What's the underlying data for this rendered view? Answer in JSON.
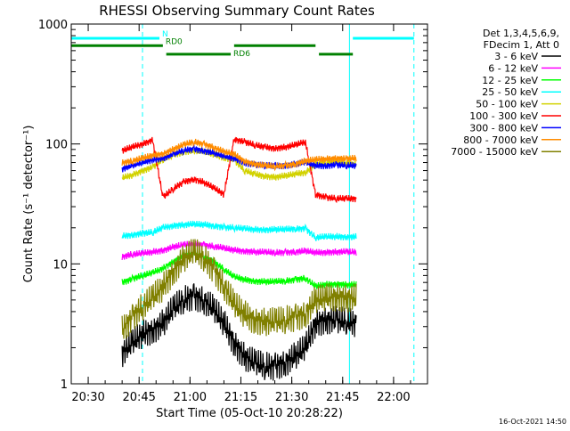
{
  "chart_data": {
    "type": "line",
    "title": "RHESSI Observing Summary Count Rates",
    "xlabel": "Start Time (05-Oct-10 20:28:22)",
    "ylabel": "Count Rate (s⁻¹ detector⁻¹)",
    "y_scale": "log",
    "ylim": [
      1,
      1000
    ],
    "xlim": [
      "20:25",
      "22:10"
    ],
    "x_ticks": [
      "20:30",
      "20:45",
      "21:00",
      "21:15",
      "21:30",
      "21:45",
      "22:00"
    ],
    "y_ticks": [
      "1",
      "10",
      "100",
      "1000"
    ],
    "legend_header": [
      "Det 1,3,4,5,6,9,",
      "FDecim 1, Att 0"
    ],
    "legend_position": "top-right",
    "timestamp": "16-Oct-2021 14:50",
    "flags": [
      {
        "label": "N",
        "color": "#00ffff",
        "segments": [
          [
            "20:25",
            "20:51"
          ],
          [
            "21:48",
            "22:06"
          ]
        ],
        "level": 760
      },
      {
        "label": "RD0",
        "color": "#008000",
        "segments": [
          [
            "20:25",
            "20:52"
          ],
          [
            "21:13",
            "21:37"
          ]
        ],
        "level": 660
      },
      {
        "label": "RD6",
        "color": "#008000",
        "segments": [
          [
            "20:53",
            "21:12"
          ],
          [
            "21:38",
            "21:48"
          ]
        ],
        "level": 560
      }
    ],
    "markers": [
      {
        "color": "#00ffff",
        "style": "solid",
        "x": "20:25"
      },
      {
        "color": "#00ffff",
        "style": "dashed",
        "x": "20:46"
      },
      {
        "color": "#00ffff",
        "style": "solid",
        "x": "21:47"
      },
      {
        "color": "#00ffff",
        "style": "dashed",
        "x": "22:06"
      }
    ],
    "series": [
      {
        "name": "3 - 6 keV",
        "color": "#000000",
        "x": [
          "20:40",
          "20:43",
          "20:46",
          "20:49",
          "20:52",
          "20:55",
          "20:58",
          "21:01",
          "21:04",
          "21:07",
          "21:10",
          "21:13",
          "21:16",
          "21:19",
          "21:22",
          "21:25",
          "21:28",
          "21:31",
          "21:34",
          "21:37",
          "21:40",
          "21:43",
          "21:46",
          "21:49"
        ],
        "values": [
          1.8,
          2.2,
          2.6,
          2.8,
          3.2,
          4.2,
          5.0,
          5.4,
          5.0,
          4.2,
          3.2,
          2.2,
          1.7,
          1.5,
          1.4,
          1.4,
          1.5,
          1.7,
          2.0,
          3.2,
          3.4,
          3.4,
          3.3,
          3.2
        ]
      },
      {
        "name": "6 - 12 keV",
        "color": "#ff00ff",
        "x": [
          "20:40",
          "20:43",
          "20:46",
          "20:49",
          "20:52",
          "20:55",
          "20:58",
          "21:01",
          "21:04",
          "21:07",
          "21:10",
          "21:13",
          "21:16",
          "21:19",
          "21:22",
          "21:25",
          "21:28",
          "21:31",
          "21:34",
          "21:37",
          "21:40",
          "21:43",
          "21:46",
          "21:49"
        ],
        "values": [
          11.5,
          12,
          12.2,
          12.6,
          13,
          13.8,
          14.4,
          14.6,
          14.4,
          14,
          13.5,
          13,
          12.8,
          12.6,
          12.5,
          12.4,
          12.5,
          12.6,
          12.8,
          12.4,
          12.5,
          12.6,
          12.6,
          12.5
        ]
      },
      {
        "name": "12 - 25 keV",
        "color": "#00ff00",
        "x": [
          "20:40",
          "20:43",
          "20:46",
          "20:49",
          "20:52",
          "20:55",
          "20:58",
          "21:01",
          "21:04",
          "21:07",
          "21:10",
          "21:13",
          "21:16",
          "21:19",
          "21:22",
          "21:25",
          "21:28",
          "21:31",
          "21:34",
          "21:37",
          "21:40",
          "21:43",
          "21:46",
          "21:49"
        ],
        "values": [
          7,
          7.5,
          8,
          8.4,
          9.2,
          10.4,
          11.8,
          12.2,
          11.6,
          10.5,
          9,
          7.8,
          7.4,
          7.2,
          7.1,
          7.1,
          7.2,
          7.4,
          7.6,
          6.5,
          6.7,
          6.8,
          6.7,
          6.7
        ]
      },
      {
        "name": "25 - 50 keV",
        "color": "#00ffff",
        "x": [
          "20:40",
          "20:43",
          "20:46",
          "20:49",
          "20:52",
          "20:55",
          "20:58",
          "21:01",
          "21:04",
          "21:07",
          "21:10",
          "21:13",
          "21:16",
          "21:19",
          "21:22",
          "21:25",
          "21:28",
          "21:31",
          "21:34",
          "21:37",
          "21:40",
          "21:43",
          "21:46",
          "21:49"
        ],
        "values": [
          17,
          17.5,
          18,
          18.3,
          20,
          20.8,
          21.2,
          21.4,
          21.2,
          20.8,
          20.2,
          20,
          19.6,
          19.4,
          19.3,
          19.3,
          19.4,
          19.6,
          19.8,
          16.6,
          16.8,
          16.9,
          16.8,
          16.8
        ]
      },
      {
        "name": "50 - 100 keV",
        "color": "#d2d200",
        "x": [
          "20:40",
          "20:43",
          "20:46",
          "20:49",
          "20:52",
          "20:55",
          "20:58",
          "21:01",
          "21:04",
          "21:07",
          "21:10",
          "21:13",
          "21:16",
          "21:19",
          "21:22",
          "21:25",
          "21:28",
          "21:31",
          "21:34",
          "21:37",
          "21:40",
          "21:43",
          "21:46",
          "21:49"
        ],
        "values": [
          52,
          55,
          60,
          64,
          74,
          80,
          86,
          88,
          86,
          82,
          77,
          74,
          60,
          56,
          54,
          53,
          54,
          56,
          58,
          68,
          69,
          70,
          69,
          68
        ]
      },
      {
        "name": "100 - 300 keV",
        "color": "#ff0000",
        "x": [
          "20:40",
          "20:43",
          "20:46",
          "20:49",
          "20:52",
          "20:55",
          "20:58",
          "21:01",
          "21:04",
          "21:07",
          "21:10",
          "21:13",
          "21:16",
          "21:19",
          "21:22",
          "21:25",
          "21:28",
          "21:31",
          "21:34",
          "21:37",
          "21:40",
          "21:43",
          "21:46",
          "21:49"
        ],
        "values": [
          88,
          94,
          100,
          108,
          36,
          42,
          48,
          51,
          48,
          43,
          38,
          110,
          104,
          98,
          94,
          92,
          94,
          98,
          104,
          38,
          36,
          35,
          35,
          35
        ]
      },
      {
        "name": "300 - 800 keV",
        "color": "#0000ff",
        "x": [
          "20:40",
          "20:43",
          "20:46",
          "20:49",
          "20:52",
          "20:55",
          "20:58",
          "21:01",
          "21:04",
          "21:07",
          "21:10",
          "21:13",
          "21:16",
          "21:19",
          "21:22",
          "21:25",
          "21:28",
          "21:31",
          "21:34",
          "21:37",
          "21:40",
          "21:43",
          "21:46",
          "21:49"
        ],
        "values": [
          62,
          66,
          70,
          74,
          76,
          82,
          88,
          91,
          88,
          84,
          79,
          76,
          70,
          67,
          66,
          66,
          66,
          68,
          70,
          66,
          66,
          67,
          66,
          66
        ]
      },
      {
        "name": "800 - 7000 keV",
        "color": "#ff8c00",
        "x": [
          "20:40",
          "20:43",
          "20:46",
          "20:49",
          "20:52",
          "20:55",
          "20:58",
          "21:01",
          "21:04",
          "21:07",
          "21:10",
          "21:13",
          "21:16",
          "21:19",
          "21:22",
          "21:25",
          "21:28",
          "21:31",
          "21:34",
          "21:37",
          "21:40",
          "21:43",
          "21:46",
          "21:49"
        ],
        "values": [
          70,
          72,
          76,
          80,
          83,
          90,
          98,
          104,
          100,
          94,
          86,
          82,
          72,
          68,
          66,
          65,
          66,
          68,
          72,
          74,
          75,
          76,
          75,
          76
        ]
      },
      {
        "name": "7000 - 15000 keV",
        "color": "#808000",
        "x": [
          "20:40",
          "20:43",
          "20:46",
          "20:49",
          "20:52",
          "20:55",
          "20:58",
          "21:01",
          "21:04",
          "21:07",
          "21:10",
          "21:13",
          "21:16",
          "21:19",
          "21:22",
          "21:25",
          "21:28",
          "21:31",
          "21:34",
          "21:37",
          "21:40",
          "21:43",
          "21:46",
          "21:49"
        ],
        "values": [
          2.8,
          3.6,
          4.4,
          5.2,
          6.4,
          8.6,
          11,
          12.6,
          11.4,
          9,
          6.6,
          4.6,
          3.8,
          3.4,
          3.3,
          3.3,
          3.4,
          3.6,
          3.8,
          5.0,
          5.2,
          5.3,
          5.2,
          5.2
        ]
      }
    ]
  }
}
